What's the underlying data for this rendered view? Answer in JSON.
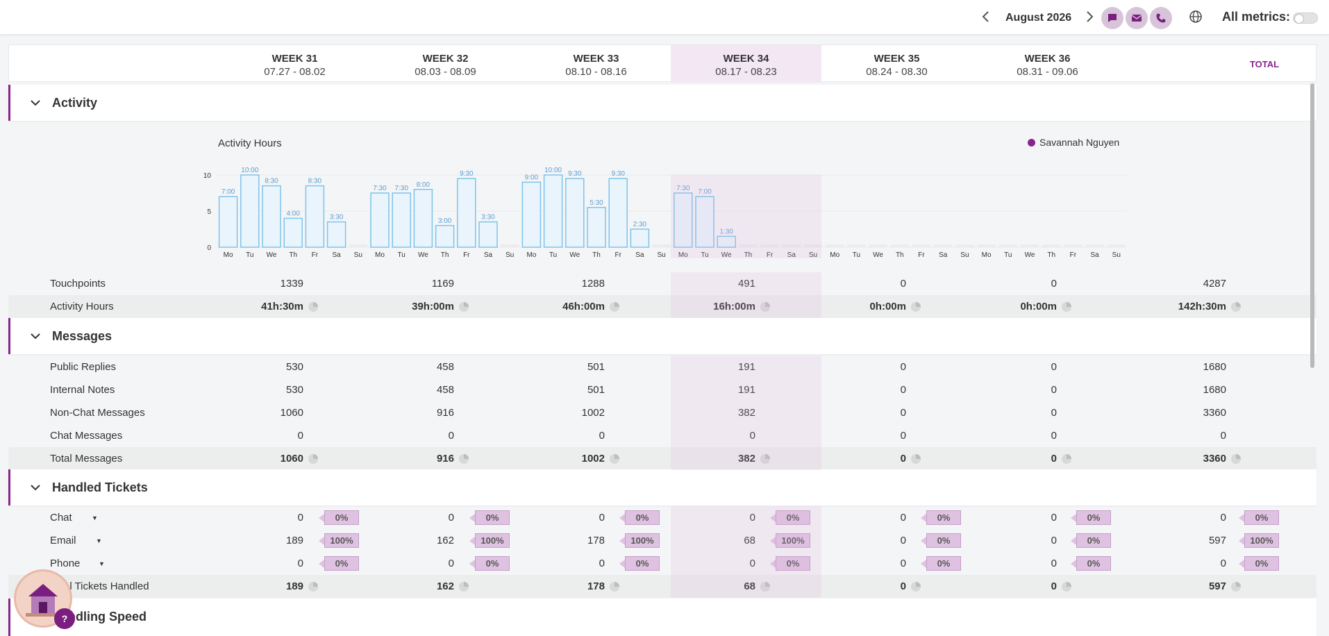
{
  "topbar": {
    "month": "August 2026",
    "all_metrics_label": "All metrics:",
    "colors": {
      "accent": "#8b2291",
      "circle": "#d7c4d9"
    }
  },
  "weeks": [
    {
      "title": "WEEK 31",
      "range": "07.27 - 08.02"
    },
    {
      "title": "WEEK 32",
      "range": "08.03 - 08.09"
    },
    {
      "title": "WEEK 33",
      "range": "08.10 - 08.16"
    },
    {
      "title": "WEEK 34",
      "range": "08.17 - 08.23"
    },
    {
      "title": "WEEK 35",
      "range": "08.24 - 08.30"
    },
    {
      "title": "WEEK 36",
      "range": "08.31 - 09.06"
    }
  ],
  "total_label": "TOTAL",
  "sections": {
    "activity": "Activity",
    "messages": "Messages",
    "handled_tickets": "Handled Tickets",
    "handling_speed": "Handling Speed"
  },
  "chart_data": {
    "type": "bar",
    "title": "Activity Hours",
    "legend": [
      "Savannah Nguyen"
    ],
    "legend_position": "top-right",
    "yticks": [
      "0",
      "5",
      "10"
    ],
    "ylim": [
      0,
      10
    ],
    "categories": [
      "Mo",
      "Tu",
      "We",
      "Th",
      "Fr",
      "Sa",
      "Su",
      "Mo",
      "Tu",
      "We",
      "Th",
      "Fr",
      "Sa",
      "Su",
      "Mo",
      "Tu",
      "We",
      "Th",
      "Fr",
      "Sa",
      "Su",
      "Mo",
      "Tu",
      "We",
      "Th",
      "Fr",
      "Sa",
      "Su",
      "Mo",
      "Tu",
      "We",
      "Th",
      "Fr",
      "Sa",
      "Su",
      "Mo",
      "Tu",
      "We",
      "Th",
      "Fr",
      "Sa",
      "Su"
    ],
    "values": [
      7,
      10,
      8.5,
      4,
      8.5,
      3.5,
      0,
      7.5,
      7.5,
      8,
      3,
      9.5,
      3.5,
      0,
      9,
      10,
      9.5,
      5.5,
      9.5,
      2.5,
      0,
      7.5,
      7,
      1.5,
      0,
      0,
      0,
      0,
      0,
      0,
      0,
      0,
      0,
      0,
      0,
      0,
      0,
      0,
      0,
      0,
      0,
      0
    ],
    "labels": [
      "7:00",
      "10:00",
      "8:30",
      "4:00",
      "8:30",
      "3:30",
      "",
      "7:30",
      "7:30",
      "8:00",
      "3:00",
      "9:30",
      "3:30",
      "",
      "9:00",
      "10:00",
      "9:30",
      "5:30",
      "9:30",
      "2:30",
      "",
      "7:30",
      "7:00",
      "1:30",
      "",
      "",
      "",
      "",
      "",
      "",
      "",
      "",
      "",
      "",
      "",
      "",
      "",
      "",
      "",
      "",
      "",
      ""
    ],
    "colors": {
      "bar_fill": "#eaf4fc",
      "bar_stroke": "#7cc4ea",
      "label": "#5a9fd4"
    }
  },
  "activity_rows": [
    {
      "label": "Touchpoints",
      "values": [
        "1339",
        "1169",
        "1288",
        "491",
        "0",
        "0",
        "4287"
      ],
      "bold": false,
      "pie": false
    },
    {
      "label": "Activity Hours",
      "values": [
        "41h:30m",
        "39h:00m",
        "46h:00m",
        "16h:00m",
        "0h:00m",
        "0h:00m",
        "142h:30m"
      ],
      "bold": true,
      "pie": true
    }
  ],
  "message_rows": [
    {
      "label": "Public Replies",
      "values": [
        "530",
        "458",
        "501",
        "191",
        "0",
        "0",
        "1680"
      ],
      "bold": false,
      "pie": false
    },
    {
      "label": "Internal Notes",
      "values": [
        "530",
        "458",
        "501",
        "191",
        "0",
        "0",
        "1680"
      ],
      "bold": false,
      "pie": false
    },
    {
      "label": "Non-Chat Messages",
      "values": [
        "1060",
        "916",
        "1002",
        "382",
        "0",
        "0",
        "3360"
      ],
      "bold": false,
      "pie": false
    },
    {
      "label": "Chat Messages",
      "values": [
        "0",
        "0",
        "0",
        "0",
        "0",
        "0",
        "0"
      ],
      "bold": false,
      "pie": false
    },
    {
      "label": "Total Messages",
      "values": [
        "1060",
        "916",
        "1002",
        "382",
        "0",
        "0",
        "3360"
      ],
      "bold": true,
      "pie": true
    }
  ],
  "ticket_rows": [
    {
      "label": "Chat",
      "values": [
        "0",
        "0",
        "0",
        "0",
        "0",
        "0",
        "0"
      ],
      "pct": [
        "0%",
        "0%",
        "0%",
        "0%",
        "0%",
        "0%",
        "0%"
      ]
    },
    {
      "label": "Email",
      "values": [
        "189",
        "162",
        "178",
        "68",
        "0",
        "0",
        "597"
      ],
      "pct": [
        "100%",
        "100%",
        "100%",
        "100%",
        "0%",
        "0%",
        "100%"
      ]
    },
    {
      "label": "Phone",
      "values": [
        "0",
        "0",
        "0",
        "0",
        "0",
        "0",
        "0"
      ],
      "pct": [
        "0%",
        "0%",
        "0%",
        "0%",
        "0%",
        "0%",
        "0%"
      ]
    }
  ],
  "ticket_total": {
    "label": "Total Tickets Handled",
    "values": [
      "189",
      "162",
      "178",
      "68",
      "0",
      "0",
      "597"
    ]
  },
  "help_label": "?"
}
